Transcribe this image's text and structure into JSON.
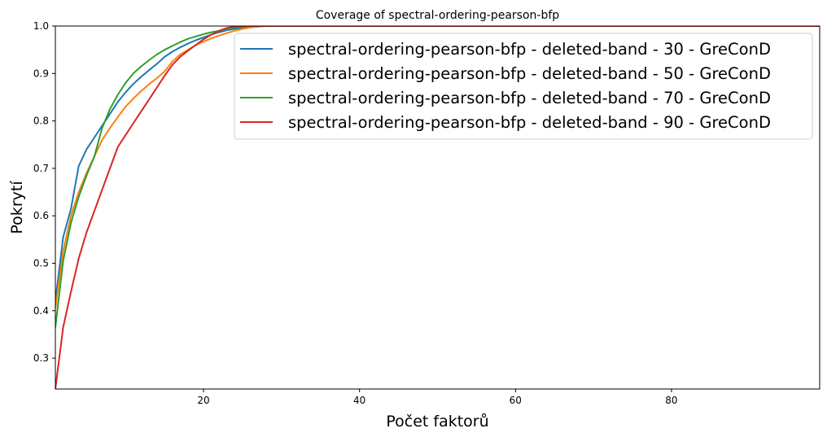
{
  "chart_data": {
    "type": "line",
    "title": "Coverage of spectral-ordering-pearson-bfp",
    "xlabel": "Počet faktorů",
    "ylabel": "Pokrytí",
    "xlim": [
      1,
      99
    ],
    "ylim": [
      0.235,
      1.0
    ],
    "xticks": [
      20,
      40,
      60,
      80
    ],
    "yticks": [
      0.3,
      0.4,
      0.5,
      0.6,
      0.7,
      0.8,
      0.9,
      1.0
    ],
    "ytick_labels": [
      "0.3",
      "0.4",
      "0.5",
      "0.6",
      "0.7",
      "0.8",
      "0.9",
      "1.0"
    ],
    "grid": false,
    "legend_position": "top-right",
    "series": [
      {
        "name": "spectral-ordering-pearson-bfp - deleted-band - 30 - GreConD",
        "color": "#1f77b4",
        "x": [
          1,
          2,
          3,
          4,
          5,
          6,
          7,
          8,
          9,
          10,
          11,
          12,
          13,
          14,
          15,
          16,
          17,
          18,
          19,
          20,
          21,
          22,
          23,
          24,
          25,
          26,
          27,
          28,
          29,
          30,
          35,
          40,
          50,
          60,
          70,
          80,
          90,
          99
        ],
        "y": [
          0.42,
          0.555,
          0.615,
          0.705,
          0.74,
          0.765,
          0.79,
          0.815,
          0.84,
          0.86,
          0.878,
          0.893,
          0.907,
          0.92,
          0.935,
          0.946,
          0.955,
          0.963,
          0.97,
          0.976,
          0.982,
          0.987,
          0.991,
          0.994,
          0.996,
          0.998,
          0.999,
          1.0,
          1.0,
          1.0,
          1.0,
          1.0,
          1.0,
          1.0,
          1.0,
          1.0,
          1.0,
          1.0
        ]
      },
      {
        "name": "spectral-ordering-pearson-bfp - deleted-band - 50 - GreConD",
        "color": "#ff7f0e",
        "x": [
          1,
          2,
          3,
          4,
          5,
          6,
          7,
          8,
          9,
          10,
          11,
          12,
          13,
          14,
          15,
          16,
          17,
          18,
          19,
          20,
          21,
          22,
          23,
          24,
          25,
          26,
          27,
          28,
          29,
          30,
          35,
          40,
          50,
          60,
          70,
          80,
          90,
          99
        ],
        "y": [
          0.405,
          0.525,
          0.6,
          0.65,
          0.69,
          0.725,
          0.76,
          0.785,
          0.808,
          0.83,
          0.847,
          0.863,
          0.877,
          0.89,
          0.904,
          0.925,
          0.94,
          0.95,
          0.96,
          0.967,
          0.974,
          0.98,
          0.985,
          0.99,
          0.994,
          0.997,
          0.999,
          1.0,
          1.0,
          1.0,
          1.0,
          1.0,
          1.0,
          1.0,
          1.0,
          1.0,
          1.0,
          1.0
        ]
      },
      {
        "name": "spectral-ordering-pearson-bfp - deleted-band - 70 - GreConD",
        "color": "#2ca02c",
        "x": [
          1,
          2,
          3,
          4,
          5,
          6,
          7,
          8,
          9,
          10,
          11,
          12,
          13,
          14,
          15,
          16,
          17,
          18,
          19,
          20,
          21,
          22,
          23,
          24,
          25,
          26,
          27,
          28,
          29,
          30,
          35,
          40,
          50,
          60,
          70,
          80,
          90,
          99
        ],
        "y": [
          0.365,
          0.505,
          0.585,
          0.64,
          0.685,
          0.725,
          0.785,
          0.825,
          0.855,
          0.88,
          0.9,
          0.915,
          0.928,
          0.94,
          0.95,
          0.958,
          0.966,
          0.973,
          0.978,
          0.983,
          0.987,
          0.99,
          0.994,
          0.997,
          0.999,
          1.0,
          1.0,
          1.0,
          1.0,
          1.0,
          1.0,
          1.0,
          1.0,
          1.0,
          1.0,
          1.0,
          1.0,
          1.0
        ]
      },
      {
        "name": "spectral-ordering-pearson-bfp - deleted-band - 90 - GreConD",
        "color": "#d62728",
        "x": [
          1,
          2,
          3,
          4,
          5,
          6,
          7,
          8,
          9,
          10,
          11,
          12,
          13,
          14,
          15,
          16,
          17,
          18,
          19,
          20,
          21,
          22,
          23,
          24,
          25,
          26,
          27,
          28,
          29,
          30,
          35,
          40,
          50,
          60,
          70,
          80,
          90,
          99
        ],
        "y": [
          0.235,
          0.365,
          0.44,
          0.51,
          0.565,
          0.61,
          0.655,
          0.7,
          0.745,
          0.77,
          0.795,
          0.82,
          0.845,
          0.87,
          0.895,
          0.918,
          0.935,
          0.948,
          0.96,
          0.972,
          0.982,
          0.99,
          0.996,
          0.999,
          1.0,
          1.0,
          1.0,
          1.0,
          1.0,
          1.0,
          1.0,
          1.0,
          1.0,
          1.0,
          1.0,
          1.0,
          1.0,
          1.0
        ]
      }
    ]
  }
}
